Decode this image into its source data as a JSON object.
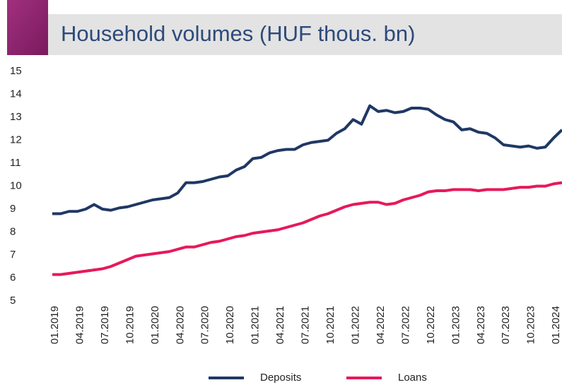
{
  "chart_data": {
    "type": "line",
    "title": "Household volumes (HUF thous. bn)",
    "categories": [
      "01.2019",
      null,
      null,
      "04.2019",
      null,
      null,
      "07.2019",
      null,
      null,
      "10.2019",
      null,
      null,
      "01.2020",
      null,
      null,
      "04.2020",
      null,
      null,
      "07.2020",
      null,
      null,
      "10.2020",
      null,
      null,
      "01.2021",
      null,
      null,
      "04.2021",
      null,
      null,
      "07.2021",
      null,
      null,
      "10.2021",
      null,
      null,
      "01.2022",
      null,
      null,
      "04.2022",
      null,
      null,
      "07.2022",
      null,
      null,
      "10.2022",
      null,
      null,
      "01.2023",
      null,
      null,
      "04.2023",
      null,
      null,
      "07.2023",
      null,
      null,
      "10.2023",
      null,
      null,
      "01.2024",
      null
    ],
    "series": [
      {
        "name": "Deposits",
        "color": "#1f3864",
        "values": [
          8.8,
          8.8,
          8.9,
          8.9,
          9.0,
          9.2,
          9.0,
          8.95,
          9.05,
          9.1,
          9.2,
          9.3,
          9.4,
          9.45,
          9.5,
          9.7,
          10.15,
          10.15,
          10.2,
          10.3,
          10.4,
          10.45,
          10.7,
          10.85,
          11.2,
          11.25,
          11.45,
          11.55,
          11.6,
          11.6,
          11.8,
          11.9,
          11.95,
          12.0,
          12.3,
          12.5,
          12.9,
          12.7,
          13.5,
          13.25,
          13.3,
          13.2,
          13.25,
          13.4,
          13.4,
          13.35,
          13.1,
          12.9,
          12.8,
          12.45,
          12.5,
          12.35,
          12.3,
          12.1,
          11.8,
          11.75,
          11.7,
          11.75,
          11.65,
          11.7,
          12.1,
          12.45
        ]
      },
      {
        "name": "Loans",
        "color": "#e6195a",
        "values": [
          6.15,
          6.15,
          6.2,
          6.25,
          6.3,
          6.35,
          6.4,
          6.5,
          6.65,
          6.8,
          6.95,
          7.0,
          7.05,
          7.1,
          7.15,
          7.25,
          7.35,
          7.35,
          7.45,
          7.55,
          7.6,
          7.7,
          7.8,
          7.85,
          7.95,
          8.0,
          8.05,
          8.1,
          8.2,
          8.3,
          8.4,
          8.55,
          8.7,
          8.8,
          8.95,
          9.1,
          9.2,
          9.25,
          9.3,
          9.3,
          9.2,
          9.25,
          9.4,
          9.5,
          9.6,
          9.75,
          9.8,
          9.8,
          9.85,
          9.85,
          9.85,
          9.8,
          9.85,
          9.85,
          9.85,
          9.9,
          9.95,
          9.95,
          10.0,
          10.0,
          10.1,
          10.15
        ]
      }
    ],
    "ylim": [
      5,
      15
    ],
    "yticks": [
      5,
      6,
      7,
      8,
      9,
      10,
      11,
      12,
      13,
      14,
      15
    ]
  }
}
